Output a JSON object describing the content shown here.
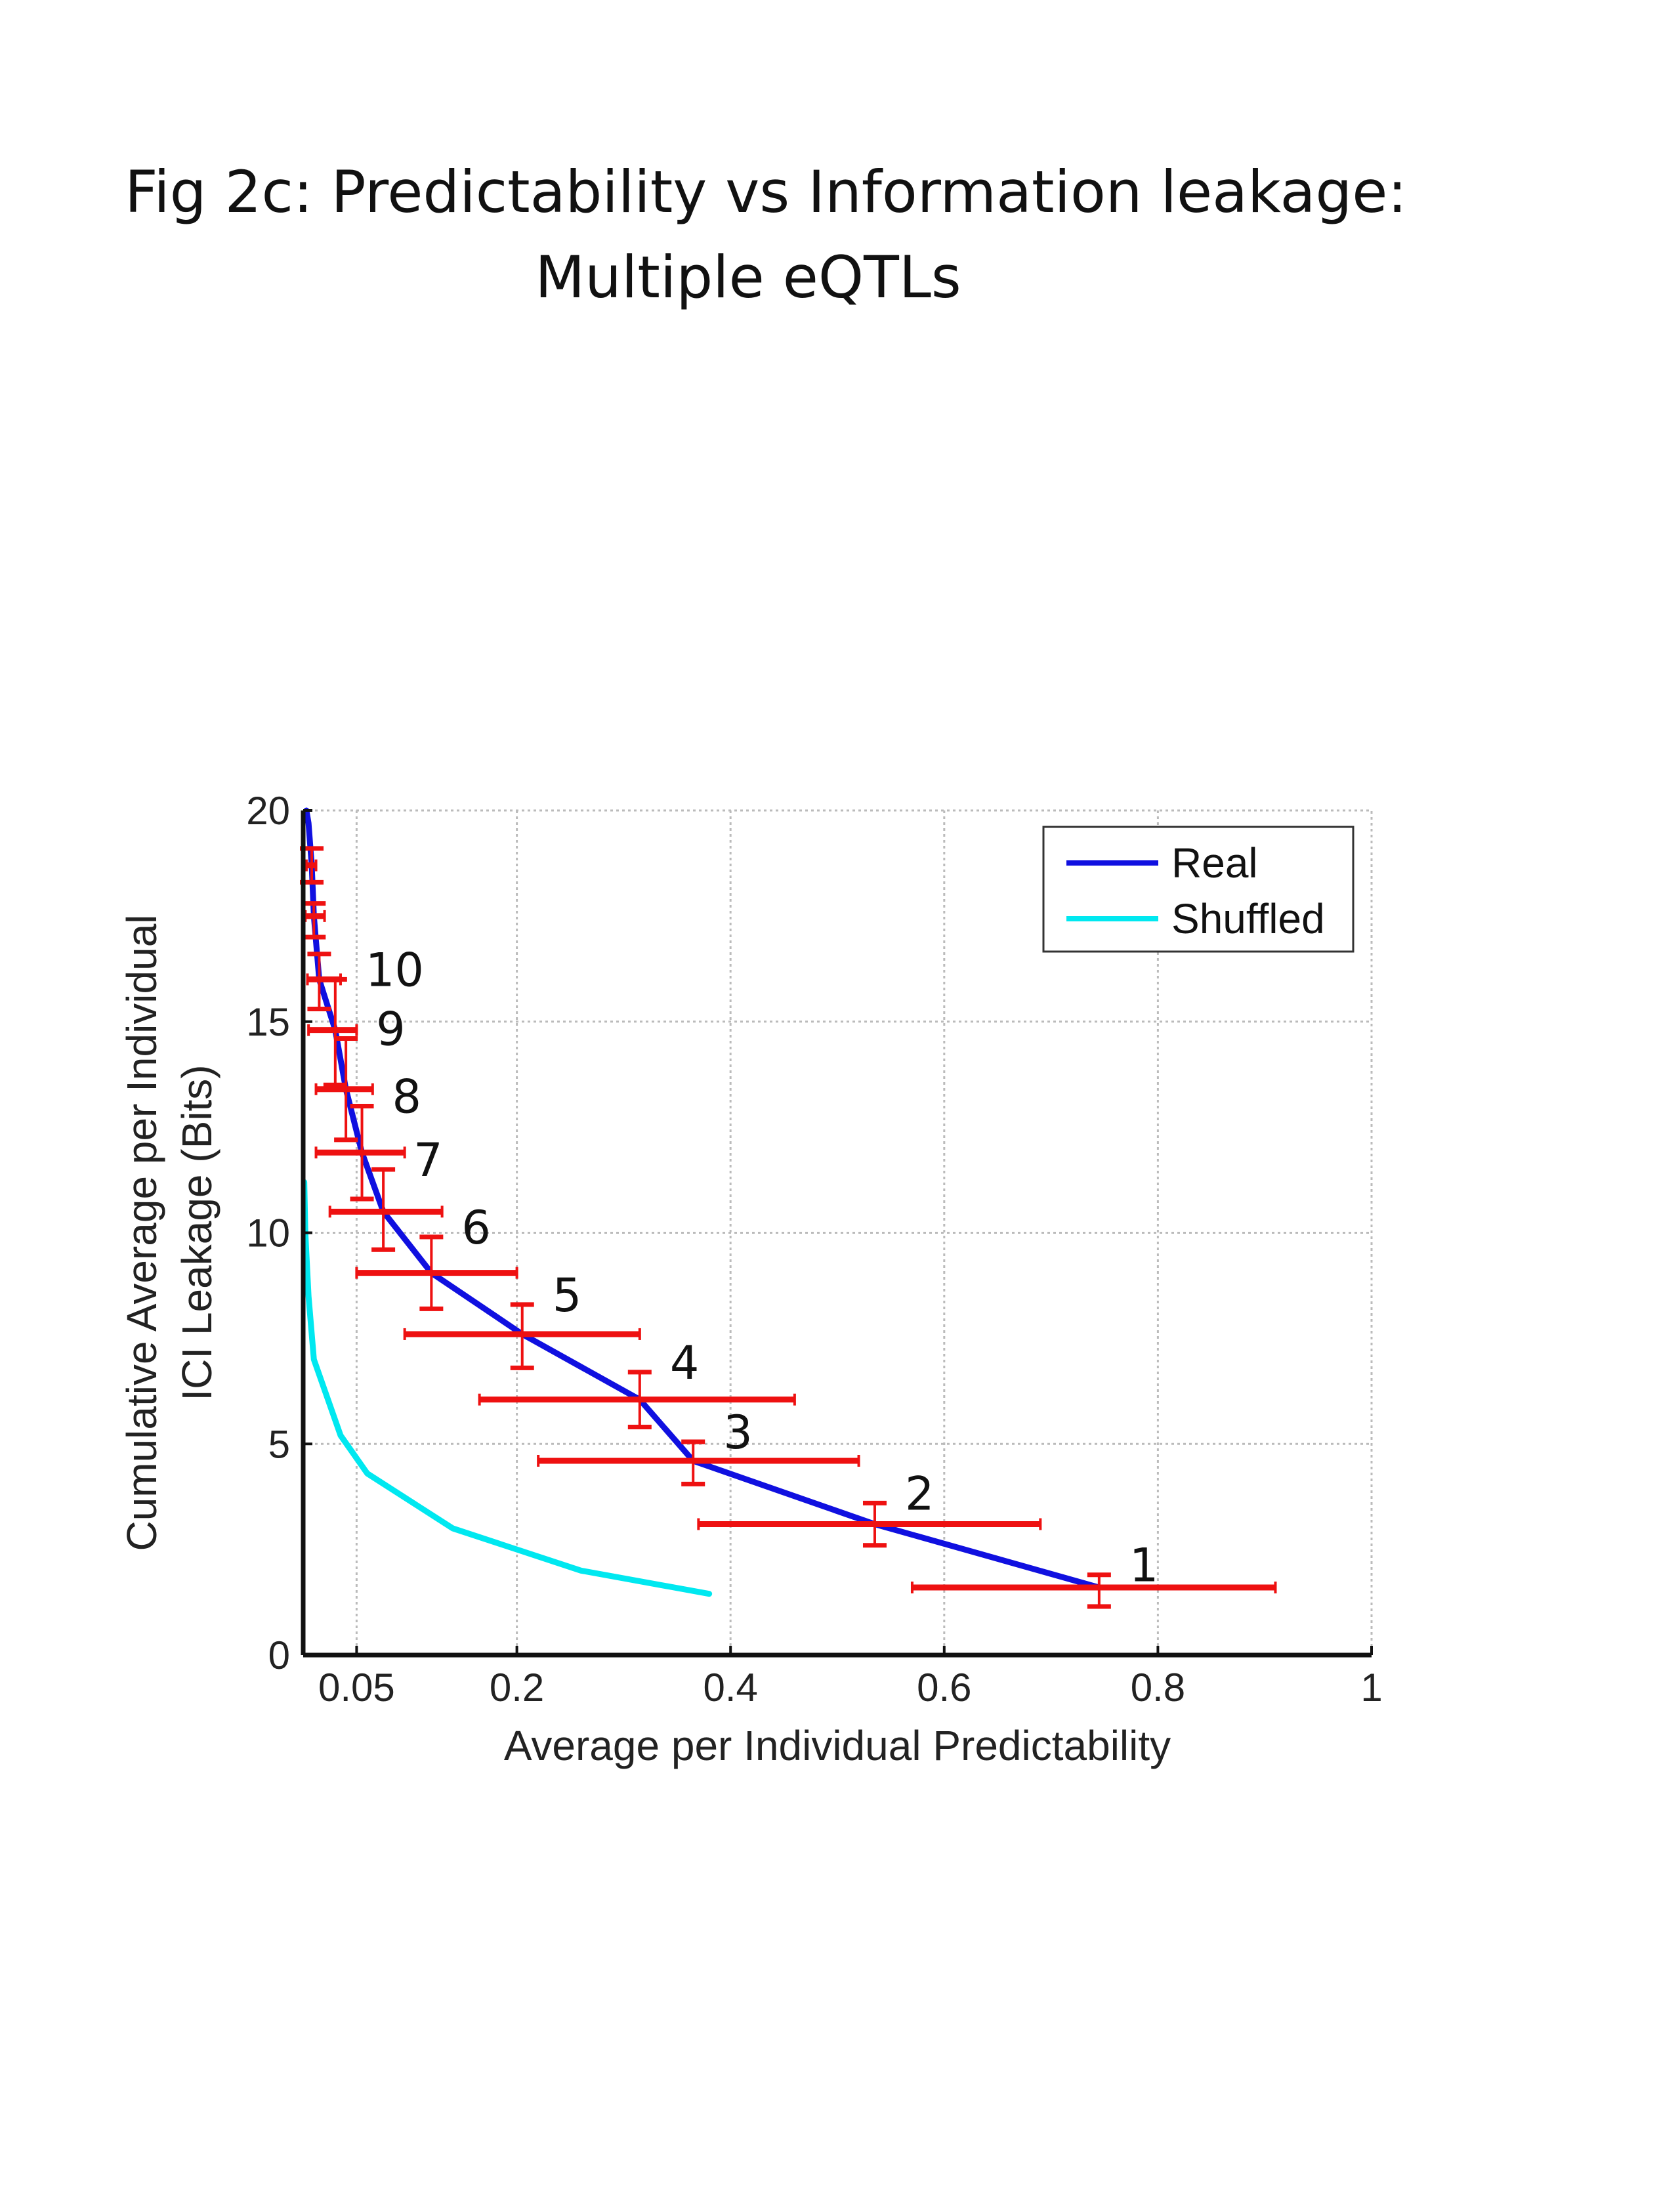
{
  "figure": {
    "title_line1": "Fig 2c: Predictability vs Information leakage:",
    "title_line2": "Multiple eQTLs"
  },
  "chart_data": {
    "type": "line",
    "xlabel": "Average per Individual Predictability",
    "ylabel_line1": "Cumulative Average per Individual",
    "ylabel_line2": "ICI Leakage (Bits)",
    "xlim": [
      0,
      1
    ],
    "ylim": [
      0,
      20
    ],
    "x_ticks": [
      {
        "value": 0.05,
        "label": "0.05"
      },
      {
        "value": 0.2,
        "label": "0.2"
      },
      {
        "value": 0.4,
        "label": "0.4"
      },
      {
        "value": 0.6,
        "label": "0.6"
      },
      {
        "value": 0.8,
        "label": "0.8"
      },
      {
        "value": 1.0,
        "label": "1"
      }
    ],
    "y_ticks": [
      {
        "value": 0,
        "label": "0"
      },
      {
        "value": 5,
        "label": "5"
      },
      {
        "value": 10,
        "label": "10"
      },
      {
        "value": 15,
        "label": "15"
      },
      {
        "value": 20,
        "label": "20"
      }
    ],
    "grid": true,
    "legend_position": "top-right",
    "colors": {
      "real": "#1010e0",
      "shuffled": "#00e8f0",
      "error_bars": "#ee1111"
    },
    "series": [
      {
        "name": "Real",
        "x": [
          0.745,
          0.535,
          0.365,
          0.315,
          0.205,
          0.12,
          0.075,
          0.055,
          0.04,
          0.03,
          0.015,
          0.01,
          0.008,
          0.005,
          0.003
        ],
        "y": [
          1.6,
          3.1,
          4.6,
          6.05,
          7.6,
          9.05,
          10.5,
          11.9,
          13.4,
          14.8,
          16.0,
          17.5,
          18.7,
          19.7,
          20.0
        ]
      },
      {
        "name": "Shuffled",
        "x": [
          0.38,
          0.26,
          0.14,
          0.06,
          0.035,
          0.01,
          0.005,
          0.002,
          0.001
        ],
        "y": [
          1.45,
          2.0,
          3.0,
          4.3,
          5.2,
          7.0,
          8.5,
          10.0,
          11.2
        ]
      }
    ],
    "error_points": [
      {
        "label": "1",
        "x": 0.745,
        "y": 1.6,
        "x_low": 0.57,
        "x_high": 0.91,
        "y_low": 1.15,
        "y_high": 1.9
      },
      {
        "label": "2",
        "x": 0.535,
        "y": 3.1,
        "x_low": 0.37,
        "x_high": 0.69,
        "y_low": 2.6,
        "y_high": 3.6
      },
      {
        "label": "3",
        "x": 0.365,
        "y": 4.6,
        "x_low": 0.22,
        "x_high": 0.52,
        "y_low": 4.05,
        "y_high": 5.05
      },
      {
        "label": "4",
        "x": 0.315,
        "y": 6.05,
        "x_low": 0.165,
        "x_high": 0.46,
        "y_low": 5.4,
        "y_high": 6.7
      },
      {
        "label": "5",
        "x": 0.205,
        "y": 7.6,
        "x_low": 0.095,
        "x_high": 0.315,
        "y_low": 6.8,
        "y_high": 8.3
      },
      {
        "label": "6",
        "x": 0.12,
        "y": 9.05,
        "x_low": 0.05,
        "x_high": 0.2,
        "y_low": 8.2,
        "y_high": 9.9
      },
      {
        "label": "7",
        "x": 0.075,
        "y": 10.5,
        "x_low": 0.025,
        "x_high": 0.13,
        "y_low": 9.6,
        "y_high": 11.5
      },
      {
        "label": "8",
        "x": 0.055,
        "y": 11.9,
        "x_low": 0.012,
        "x_high": 0.095,
        "y_low": 10.8,
        "y_high": 13.0
      },
      {
        "label": "9",
        "x": 0.04,
        "y": 13.4,
        "x_low": 0.012,
        "x_high": 0.065,
        "y_low": 12.2,
        "y_high": 14.6
      },
      {
        "label": "10",
        "x": 0.03,
        "y": 14.8,
        "x_low": 0.005,
        "x_high": 0.05,
        "y_low": 13.5,
        "y_high": 16.0
      },
      {
        "label": "",
        "x": 0.015,
        "y": 16.0,
        "x_low": 0.004,
        "x_high": 0.035,
        "y_low": 15.3,
        "y_high": 16.6
      },
      {
        "label": "",
        "x": 0.01,
        "y": 17.5,
        "x_low": 0.002,
        "x_high": 0.02,
        "y_low": 17.0,
        "y_high": 17.8
      },
      {
        "label": "",
        "x": 0.008,
        "y": 18.7,
        "x_low": 0.003,
        "x_high": 0.012,
        "y_low": 18.3,
        "y_high": 19.1
      }
    ]
  }
}
